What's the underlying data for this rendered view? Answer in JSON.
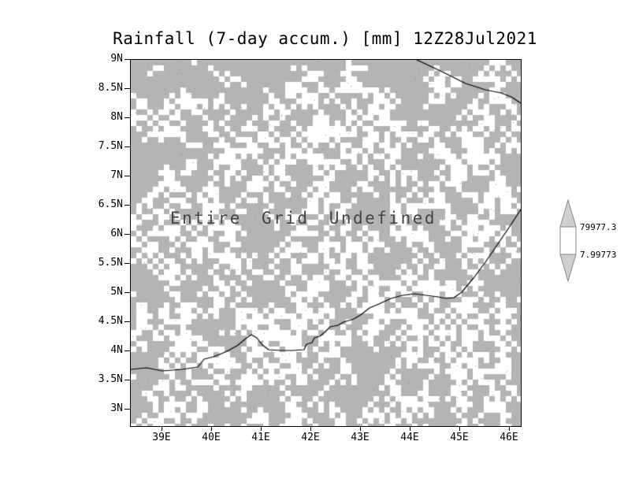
{
  "chart_data": {
    "type": "heatmap",
    "title": "Rainfall (7-day accum.) [mm] 12Z28Jul2021",
    "status": "Entire Grid Undefined",
    "x_ticks": [
      "39E",
      "40E",
      "41E",
      "42E",
      "43E",
      "44E",
      "45E",
      "46E"
    ],
    "y_ticks": [
      "9N",
      "8.5N",
      "8N",
      "7.5N",
      "7N",
      "6.5N",
      "6N",
      "5.5N",
      "5N",
      "4.5N",
      "4N",
      "3.5N",
      "3N"
    ],
    "values": "undefined",
    "grid_fill_color": "#b4b4b4",
    "legend_position": "right",
    "colorbar": {
      "labels": [
        "79977.3",
        "7.99773"
      ]
    }
  }
}
